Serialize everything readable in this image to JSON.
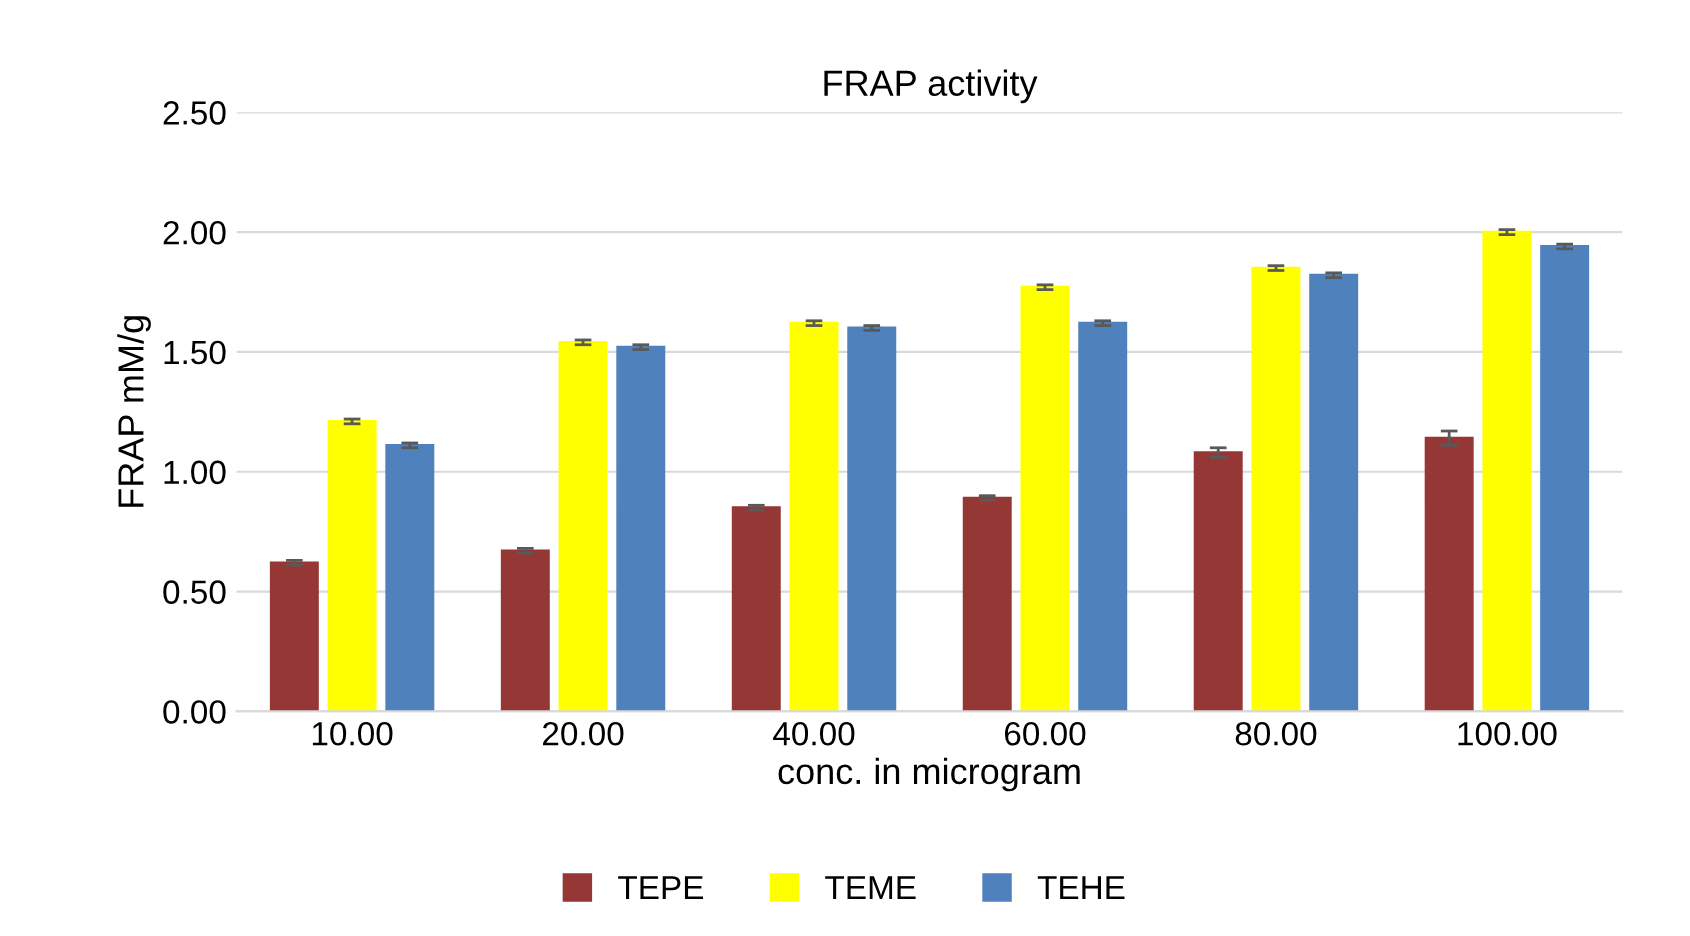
{
  "chart_data": {
    "type": "bar",
    "title": "FRAP activity",
    "xlabel": "conc. in microgram",
    "ylabel": "FRAP mM/g",
    "categories": [
      "10.00",
      "20.00",
      "40.00",
      "60.00",
      "80.00",
      "100.00"
    ],
    "series": [
      {
        "name": "TEPE",
        "color": "#953735",
        "values": [
          0.62,
          0.67,
          0.85,
          0.89,
          1.08,
          1.14
        ],
        "errors": [
          0.01,
          0.01,
          0.01,
          0.01,
          0.02,
          0.03
        ]
      },
      {
        "name": "TEME",
        "color": "#ffff00",
        "values": [
          1.21,
          1.54,
          1.62,
          1.77,
          1.85,
          2.0
        ],
        "errors": [
          0.01,
          0.01,
          0.01,
          0.01,
          0.01,
          0.01
        ]
      },
      {
        "name": "TEHE",
        "color": "#4f81bd",
        "values": [
          1.11,
          1.52,
          1.6,
          1.62,
          1.82,
          1.94
        ],
        "errors": [
          0.01,
          0.01,
          0.01,
          0.01,
          0.01,
          0.01
        ]
      }
    ],
    "ylim": [
      0,
      2.5
    ],
    "yticks": [
      {
        "value": 0,
        "label": "0.00"
      },
      {
        "value": 0.5,
        "label": "0.50"
      },
      {
        "value": 1,
        "label": "1.00"
      },
      {
        "value": 1.5,
        "label": "1.50"
      },
      {
        "value": 2,
        "label": "2.00"
      },
      {
        "value": 2.5,
        "label": "2.50"
      }
    ],
    "grid": "y",
    "legend": "bottom"
  }
}
